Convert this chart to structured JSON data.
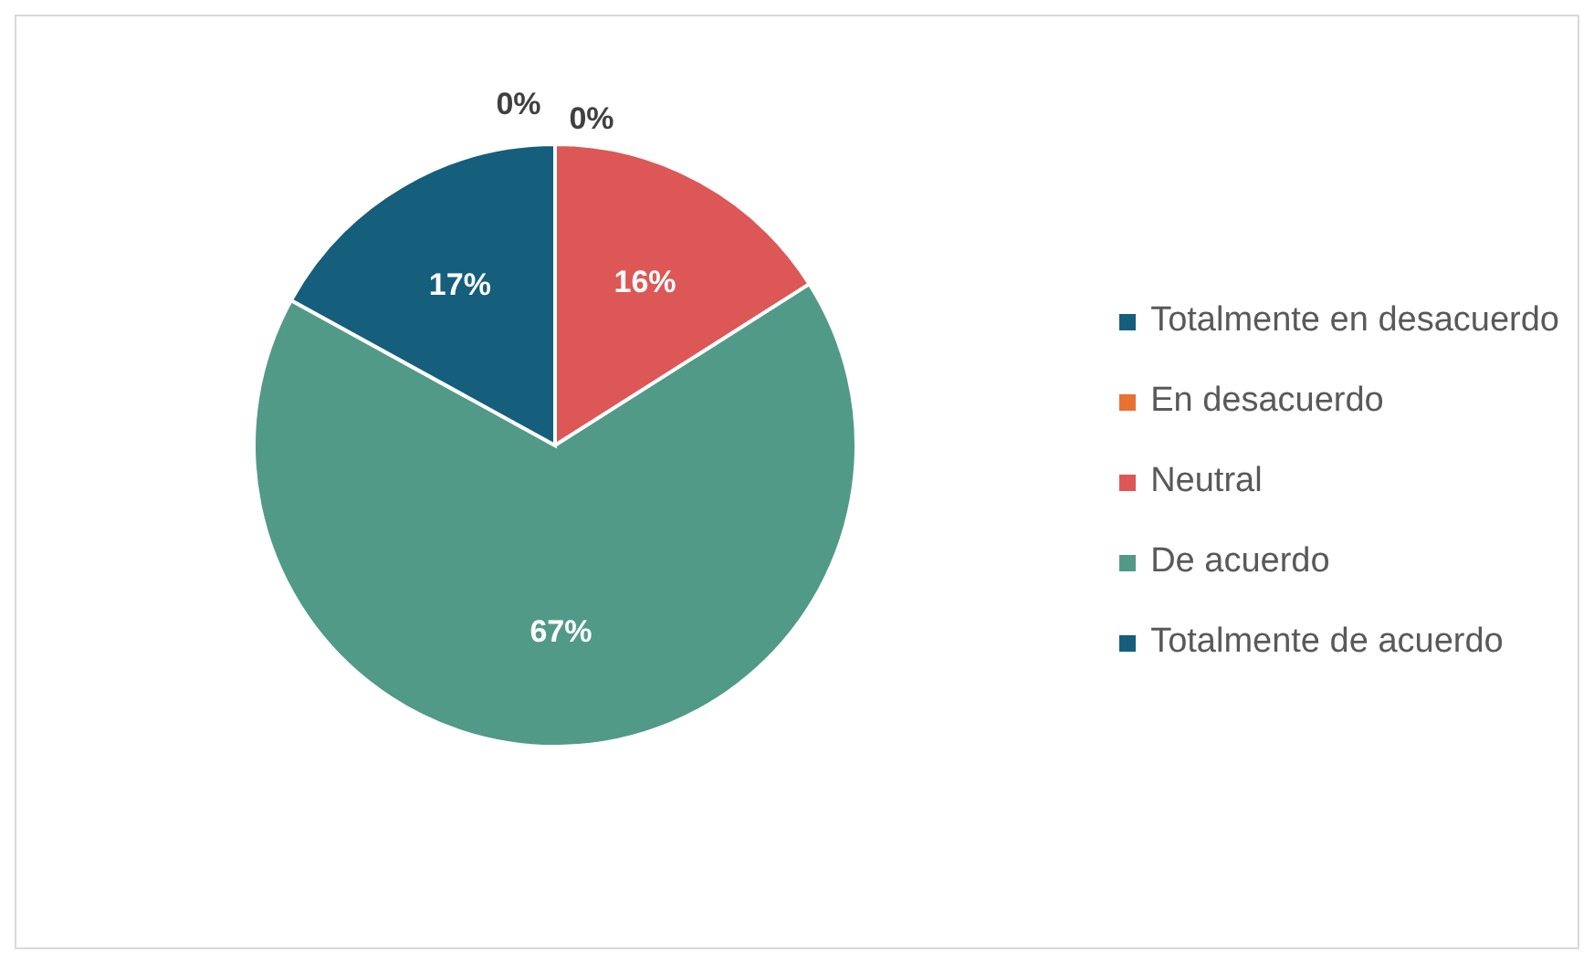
{
  "chart_data": {
    "type": "pie",
    "categories": [
      "Totalmente en desacuerdo",
      "En desacuerdo",
      "Neutral",
      "De acuerdo",
      "Totalmente de acuerdo"
    ],
    "values": [
      0,
      0,
      16,
      67,
      17
    ],
    "colors": [
      "#155e7c",
      "#e97132",
      "#dd5757",
      "#529a88",
      "#155e7c"
    ],
    "value_labels": [
      "0%",
      "0%",
      "16%",
      "67%",
      "17%"
    ],
    "legend": "right"
  }
}
